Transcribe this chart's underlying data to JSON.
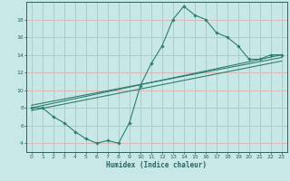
{
  "xlabel": "Humidex (Indice chaleur)",
  "x_data": [
    0,
    1,
    2,
    3,
    4,
    5,
    6,
    7,
    8,
    9,
    10,
    11,
    12,
    13,
    14,
    15,
    16,
    17,
    18,
    19,
    20,
    21,
    22,
    23
  ],
  "y_data": [
    8.0,
    8.0,
    7.0,
    6.3,
    5.3,
    4.5,
    4.0,
    4.3,
    4.0,
    6.3,
    10.5,
    13.0,
    15.0,
    18.0,
    19.5,
    18.5,
    18.0,
    16.5,
    16.0,
    15.0,
    13.5,
    13.5,
    14.0,
    14.0
  ],
  "line_color": "#2e7d6e",
  "bg_color": "#c8e8e8",
  "grid_color": "#d8b8b8",
  "tick_color": "#2e6060",
  "ylim": [
    3.0,
    20.0
  ],
  "xlim": [
    -0.5,
    23.5
  ],
  "yticks": [
    4,
    6,
    8,
    10,
    12,
    14,
    16,
    18
  ],
  "xticks": [
    0,
    1,
    2,
    3,
    4,
    5,
    6,
    7,
    8,
    9,
    10,
    11,
    12,
    13,
    14,
    15,
    16,
    17,
    18,
    19,
    20,
    21,
    22,
    23
  ],
  "reg_lines": [
    {
      "x0": 0,
      "y0": 8.0,
      "x1": 23,
      "y1": 14.0
    },
    {
      "x0": 0,
      "y0": 7.7,
      "x1": 23,
      "y1": 13.3
    },
    {
      "x0": 0,
      "y0": 8.3,
      "x1": 23,
      "y1": 13.7
    }
  ]
}
